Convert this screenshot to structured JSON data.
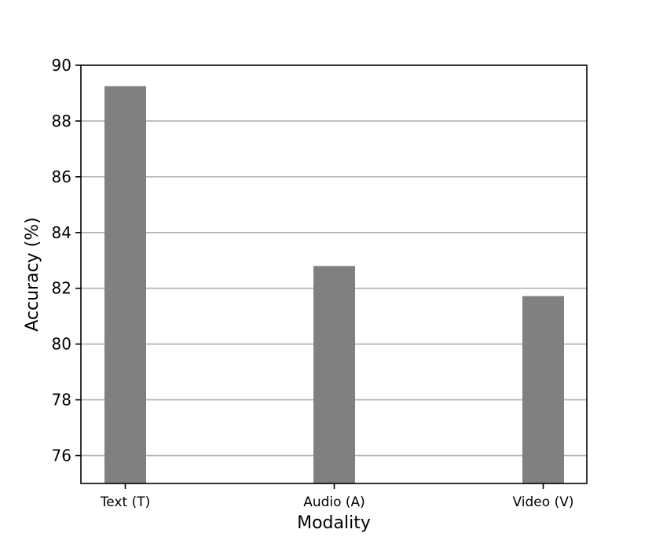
{
  "chart_data": {
    "type": "bar",
    "title": "",
    "xlabel": "Modality",
    "ylabel": "Accuracy (%)",
    "categories": [
      "Text (T)",
      "Audio (A)",
      "Video (V)"
    ],
    "values": [
      89.25,
      82.8,
      81.72
    ],
    "ylim": [
      75,
      90
    ],
    "yticks": [
      76,
      78,
      80,
      82,
      84,
      86,
      88,
      90
    ],
    "grid": "horizontal",
    "bar_color": "#808080",
    "grid_color": "#b0b0b0"
  }
}
